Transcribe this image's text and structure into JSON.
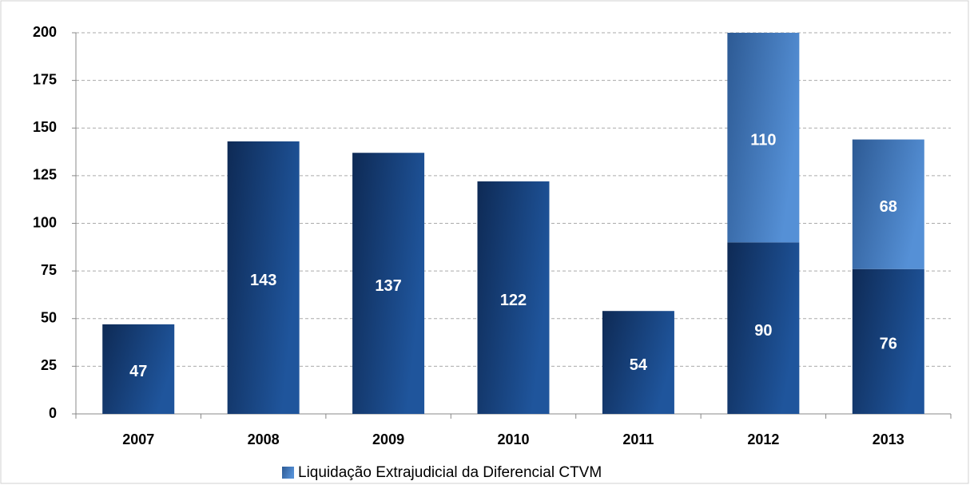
{
  "chart_data": {
    "type": "stacked_bar",
    "categories": [
      "2007",
      "2008",
      "2009",
      "2010",
      "2011",
      "2012",
      "2013"
    ],
    "series": [
      {
        "color": "#1a4a8a",
        "values": [
          47,
          143,
          137,
          122,
          54,
          90,
          76
        ]
      },
      {
        "name": "Liquidação Extrajudicial da Diferencial CTVM",
        "color": "#4a82c8",
        "values": [
          null,
          null,
          null,
          null,
          null,
          110,
          68
        ]
      }
    ],
    "ylim": [
      0,
      200
    ],
    "yticks": [
      0,
      25,
      50,
      75,
      100,
      125,
      150,
      175,
      200
    ],
    "grid": true,
    "legend": "bottom"
  }
}
